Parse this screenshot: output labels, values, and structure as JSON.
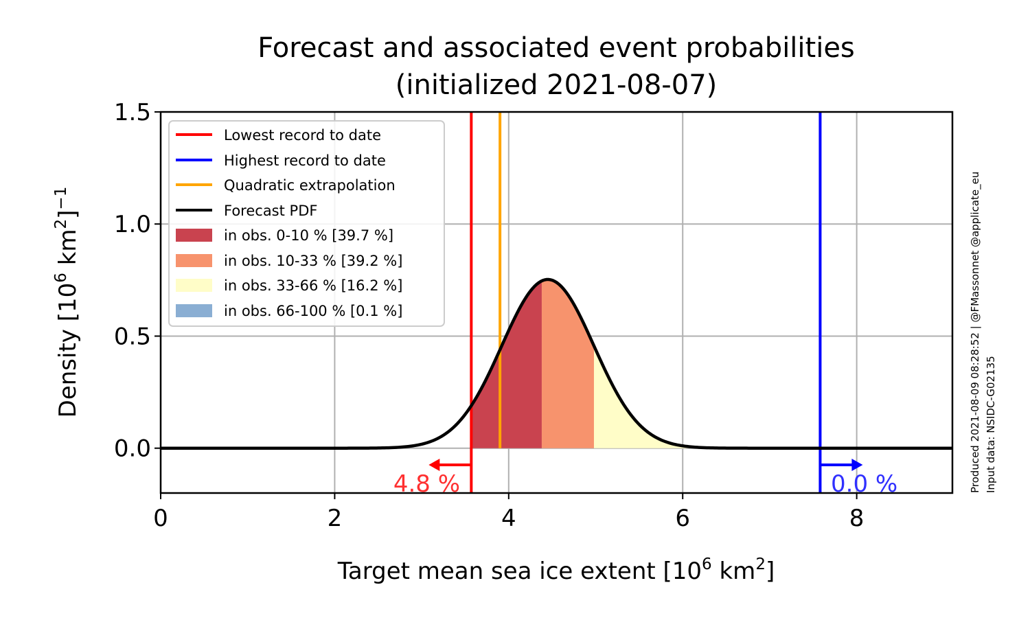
{
  "chart_data": {
    "type": "area",
    "title_line1": "Forecast and associated event probabilities",
    "title_line2": "(initialized 2021-08-07)",
    "xlabel_main": "Target mean sea ice extent [10",
    "xlabel_sup1": "6",
    "xlabel_mid": " km",
    "xlabel_sup2": "2",
    "xlabel_end": "]",
    "ylabel_main": "Density [10",
    "ylabel_sup1": "6",
    "ylabel_mid": " km",
    "ylabel_sup2": "2",
    "ylabel_end": "]",
    "ylabel_sup3": "−1",
    "xlim": [
      0,
      9.1
    ],
    "ylim": [
      -0.2,
      1.5
    ],
    "xticks": [
      0,
      2,
      4,
      6,
      8
    ],
    "xtick_labels": [
      "0",
      "2",
      "4",
      "6",
      "8"
    ],
    "yticks": [
      0.0,
      0.5,
      1.0,
      1.5
    ],
    "ytick_labels": [
      "0.0",
      "0.5",
      "1.0",
      "1.5"
    ],
    "grid": true,
    "legend_position": "top-left",
    "pdf": {
      "mean": 4.45,
      "sd": 0.53,
      "color": "#000000"
    },
    "lowest_record": {
      "x": 3.57,
      "label": "Lowest record to date",
      "color": "#ff0000"
    },
    "highest_record": {
      "x": 7.58,
      "label": "Highest record to date",
      "color": "#0000ff"
    },
    "quadratic_extrapolation": {
      "x": 3.9,
      "label": "Quadratic extrapolation",
      "color": "#ffa500"
    },
    "forecast_pdf_label": "Forecast PDF",
    "bands": [
      {
        "label": "in obs. 0-10 % [39.7 %]",
        "from": 3.57,
        "to": 4.38,
        "color": "#c9434f"
      },
      {
        "label": "in obs. 10-33 % [39.2 %]",
        "from": 4.38,
        "to": 4.98,
        "color": "#f7936d"
      },
      {
        "label": "in obs. 33-66 % [16.2 %]",
        "from": 4.98,
        "to": 7.58,
        "color": "#fffdc8"
      },
      {
        "label": "in obs. 66-100 % [0.1 %]",
        "from": 7.58,
        "to": 9.1,
        "color": "#8aaed3"
      }
    ],
    "low_prob_text": "4.8 %",
    "high_prob_text": "0.0 %",
    "low_prob_color": "#ff3030",
    "high_prob_color": "#3030ff",
    "credit_line1": "Produced 2021-08-09 08:28:52 | @FMassonnet @applicate_eu",
    "credit_line2": "Input data: NSIDC-G02135"
  }
}
